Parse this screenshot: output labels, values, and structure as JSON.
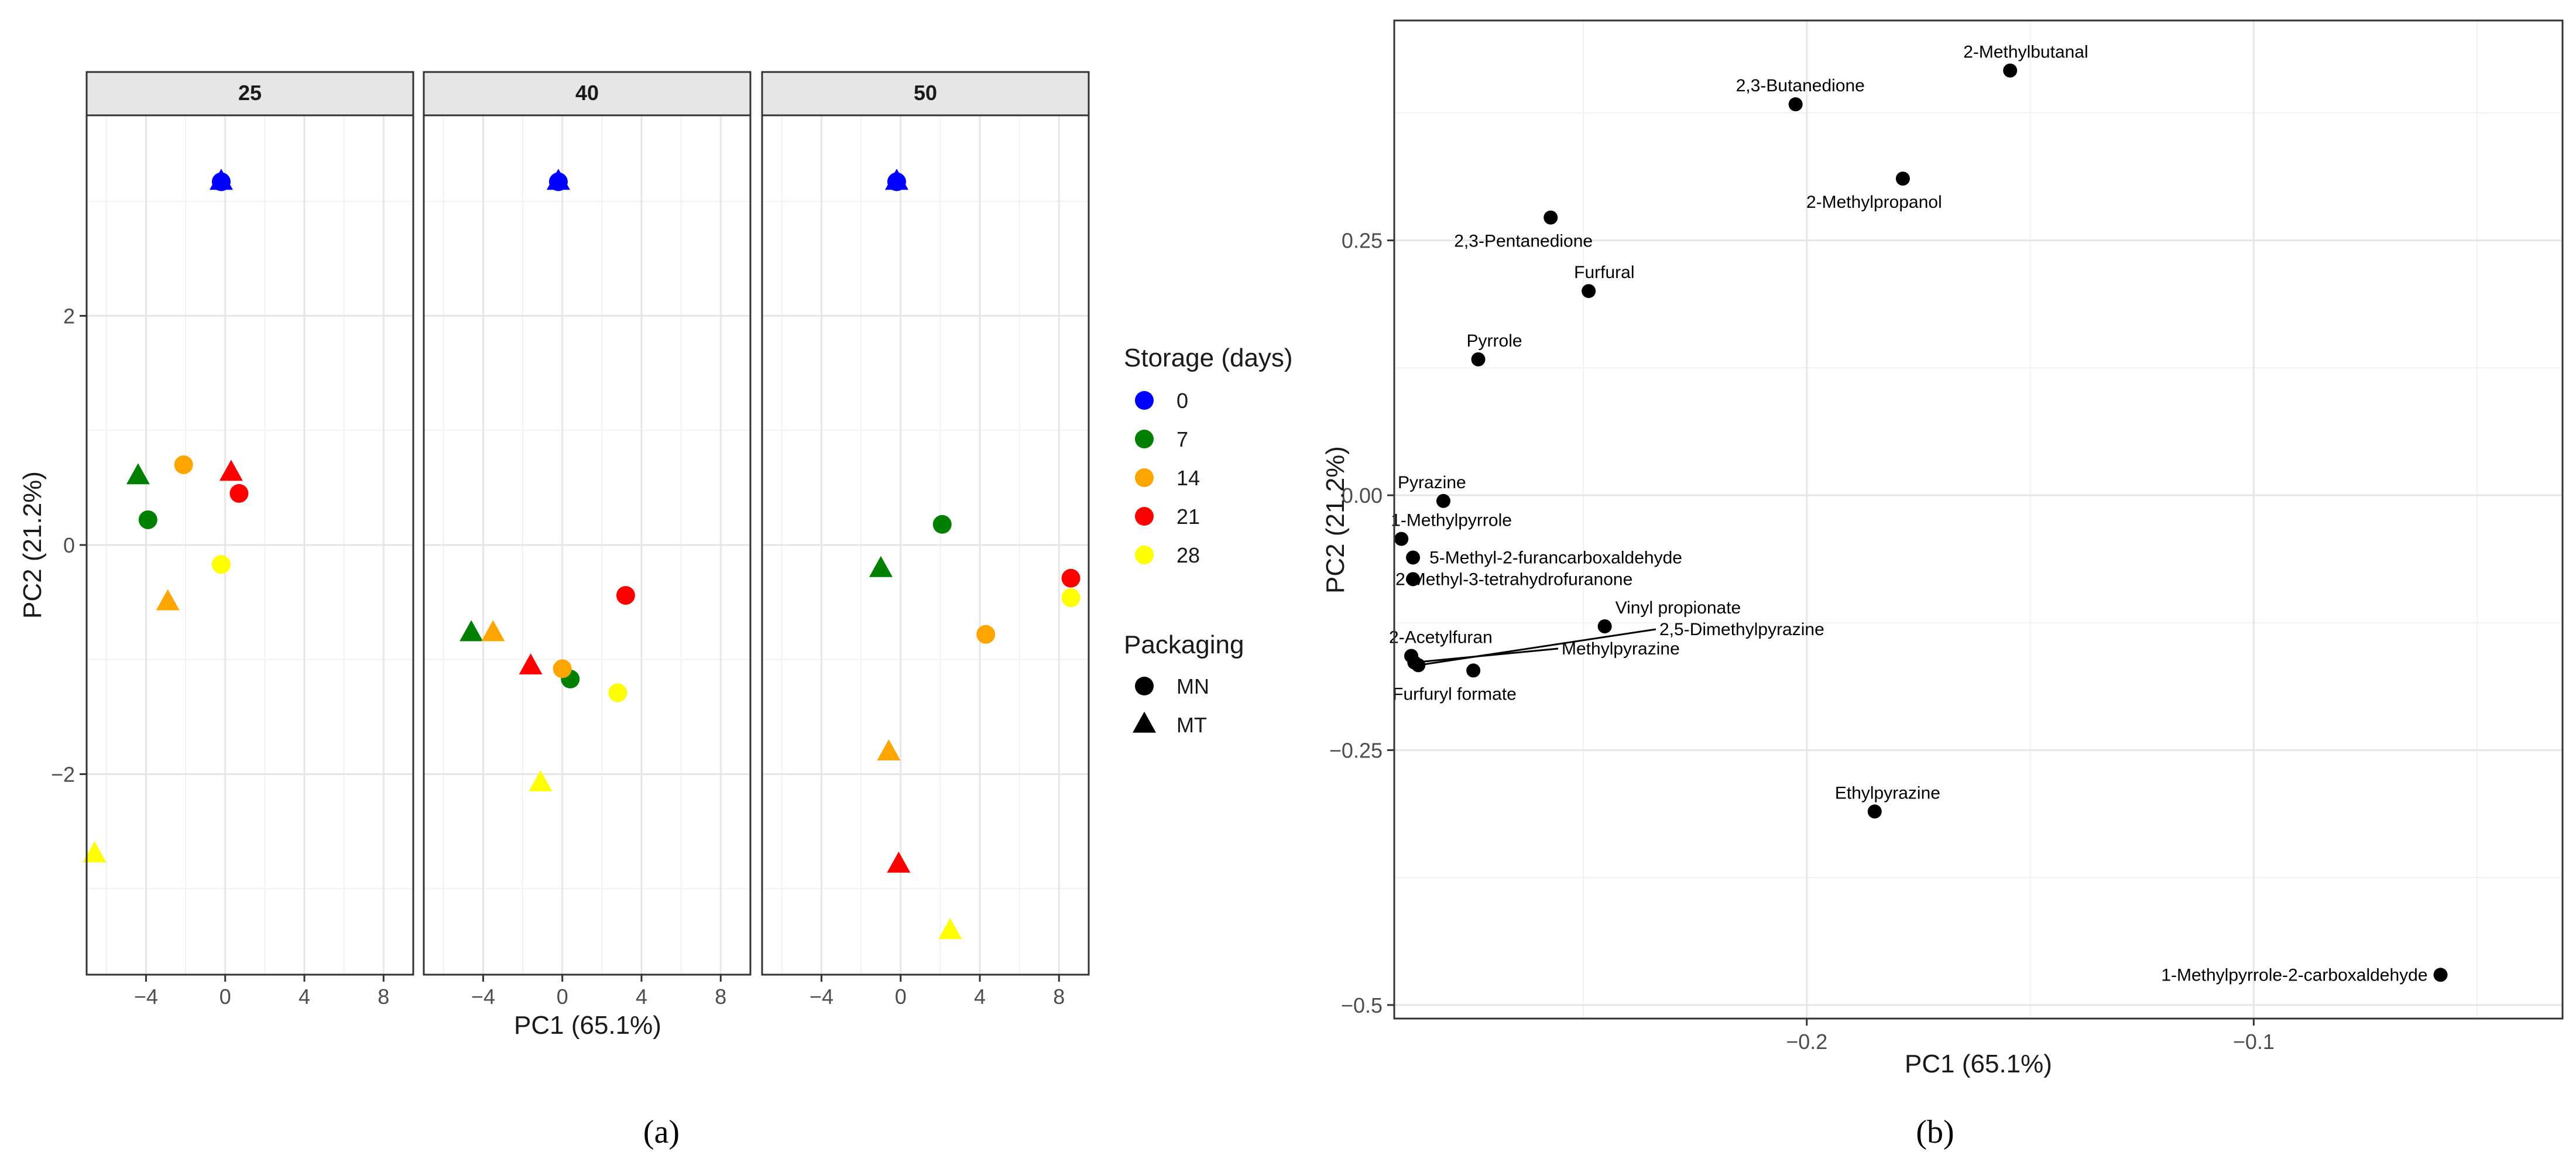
{
  "chart_data": [
    {
      "type": "scatter",
      "panel": "a",
      "caption": "(a)",
      "xlabel": "PC1 (65.1%)",
      "ylabel": "PC2 (21.2%)",
      "xlim": [
        -7,
        9.5
      ],
      "ylim": [
        -3.75,
        3.75
      ],
      "xticks": [
        -4,
        0,
        4,
        8
      ],
      "yticks": [
        -2,
        0,
        2
      ],
      "grid": true,
      "facets": [
        {
          "label": "25",
          "points": [
            {
              "x": -0.2,
              "y": 3.17,
              "storage": "0",
              "packaging": "MT"
            },
            {
              "x": -0.2,
              "y": 3.17,
              "storage": "0",
              "packaging": "MN"
            },
            {
              "x": -4.4,
              "y": 0.6,
              "storage": "7",
              "packaging": "MT"
            },
            {
              "x": -3.9,
              "y": 0.22,
              "storage": "7",
              "packaging": "MN"
            },
            {
              "x": -2.1,
              "y": 0.7,
              "storage": "14",
              "packaging": "MN"
            },
            {
              "x": -2.9,
              "y": -0.5,
              "storage": "14",
              "packaging": "MT"
            },
            {
              "x": 0.3,
              "y": 0.63,
              "storage": "21",
              "packaging": "MT"
            },
            {
              "x": 0.7,
              "y": 0.45,
              "storage": "21",
              "packaging": "MN"
            },
            {
              "x": -0.2,
              "y": -0.17,
              "storage": "28",
              "packaging": "MN"
            },
            {
              "x": -6.6,
              "y": -2.7,
              "storage": "28",
              "packaging": "MT"
            }
          ]
        },
        {
          "label": "40",
          "points": [
            {
              "x": -0.2,
              "y": 3.17,
              "storage": "0",
              "packaging": "MT"
            },
            {
              "x": -0.2,
              "y": 3.17,
              "storage": "0",
              "packaging": "MN"
            },
            {
              "x": -4.6,
              "y": -0.77,
              "storage": "7",
              "packaging": "MT"
            },
            {
              "x": 0.4,
              "y": -1.17,
              "storage": "7",
              "packaging": "MN"
            },
            {
              "x": -3.5,
              "y": -0.77,
              "storage": "14",
              "packaging": "MT"
            },
            {
              "x": 0.0,
              "y": -1.08,
              "storage": "14",
              "packaging": "MN"
            },
            {
              "x": -1.6,
              "y": -1.06,
              "storage": "21",
              "packaging": "MT"
            },
            {
              "x": 3.2,
              "y": -0.44,
              "storage": "21",
              "packaging": "MN"
            },
            {
              "x": 2.8,
              "y": -1.29,
              "storage": "28",
              "packaging": "MN"
            },
            {
              "x": -1.1,
              "y": -2.08,
              "storage": "28",
              "packaging": "MT"
            }
          ]
        },
        {
          "label": "50",
          "points": [
            {
              "x": -0.2,
              "y": 3.17,
              "storage": "0",
              "packaging": "MT"
            },
            {
              "x": -0.2,
              "y": 3.17,
              "storage": "0",
              "packaging": "MN"
            },
            {
              "x": -1.0,
              "y": -0.21,
              "storage": "7",
              "packaging": "MT"
            },
            {
              "x": 2.1,
              "y": 0.18,
              "storage": "7",
              "packaging": "MN"
            },
            {
              "x": -0.6,
              "y": -1.81,
              "storage": "14",
              "packaging": "MT"
            },
            {
              "x": 4.3,
              "y": -0.78,
              "storage": "14",
              "packaging": "MN"
            },
            {
              "x": 8.6,
              "y": -0.29,
              "storage": "21",
              "packaging": "MN"
            },
            {
              "x": -0.1,
              "y": -2.79,
              "storage": "21",
              "packaging": "MT"
            },
            {
              "x": 8.6,
              "y": -0.46,
              "storage": "28",
              "packaging": "MN"
            },
            {
              "x": 2.5,
              "y": -3.37,
              "storage": "28",
              "packaging": "MT"
            }
          ]
        }
      ],
      "legend": {
        "placement": "right",
        "storage_title": "Storage (days)",
        "storage": [
          {
            "label": "0",
            "color": "#0000ff"
          },
          {
            "label": "7",
            "color": "#008000"
          },
          {
            "label": "14",
            "color": "#ffa500"
          },
          {
            "label": "21",
            "color": "#ff0000"
          },
          {
            "label": "28",
            "color": "#ffff00"
          }
        ],
        "packaging_title": "Packaging",
        "packaging": [
          {
            "label": "MN",
            "shape": "circle"
          },
          {
            "label": "MT",
            "shape": "triangle"
          }
        ]
      }
    },
    {
      "type": "scatter",
      "panel": "b",
      "caption": "(b)",
      "xlabel": "PC1 (65.1%)",
      "ylabel": "PC2 (21.2%)",
      "xlim": [
        -0.2923,
        -0.0309
      ],
      "ylim": [
        -0.5133,
        0.4657
      ],
      "xticks": [
        -0.2,
        -0.1
      ],
      "yticks": [
        -0.5,
        -0.25,
        0.0,
        0.25
      ],
      "grid": true,
      "points": [
        {
          "x": -0.1545,
          "y": 0.4166,
          "label": "2-Methylbutanal"
        },
        {
          "x": -0.2025,
          "y": 0.3835,
          "label": "2,3-Butanedione"
        },
        {
          "x": -0.1785,
          "y": 0.3106,
          "label": "2-Methylpropanol"
        },
        {
          "x": -0.2573,
          "y": 0.2724,
          "label": "2,3-Pentanedione"
        },
        {
          "x": -0.2488,
          "y": 0.2003,
          "label": "Furfural"
        },
        {
          "x": -0.2735,
          "y": 0.1333,
          "label": "Pyrrole"
        },
        {
          "x": -0.2813,
          "y": -0.0056,
          "label": "Pyrazine"
        },
        {
          "x": -0.2907,
          "y": -0.0428,
          "label": "1-Methylpyrrole"
        },
        {
          "x": -0.2881,
          "y": -0.0611,
          "label": "5-Methyl-2-furancarboxaldehyde"
        },
        {
          "x": -0.2881,
          "y": -0.0823,
          "label": "2-Methyl-3-tetrahydrofuranone"
        },
        {
          "x": -0.2452,
          "y": -0.1286,
          "label": "Vinyl propionate"
        },
        {
          "x": -0.2885,
          "y": -0.1576,
          "label": "2-Acetylfuran"
        },
        {
          "x": -0.2869,
          "y": -0.1667,
          "label": "2,5-Dimethylpyrazine"
        },
        {
          "x": -0.2878,
          "y": -0.164,
          "label": "Methylpyrazine"
        },
        {
          "x": -0.2746,
          "y": -0.1719,
          "label": "Furfuryl formate"
        },
        {
          "x": -0.1848,
          "y": -0.3102,
          "label": "Ethylpyrazine"
        },
        {
          "x": -0.0582,
          "y": -0.4704,
          "label": "1-Methylpyrrole-2-carboxaldehyde"
        }
      ]
    }
  ]
}
